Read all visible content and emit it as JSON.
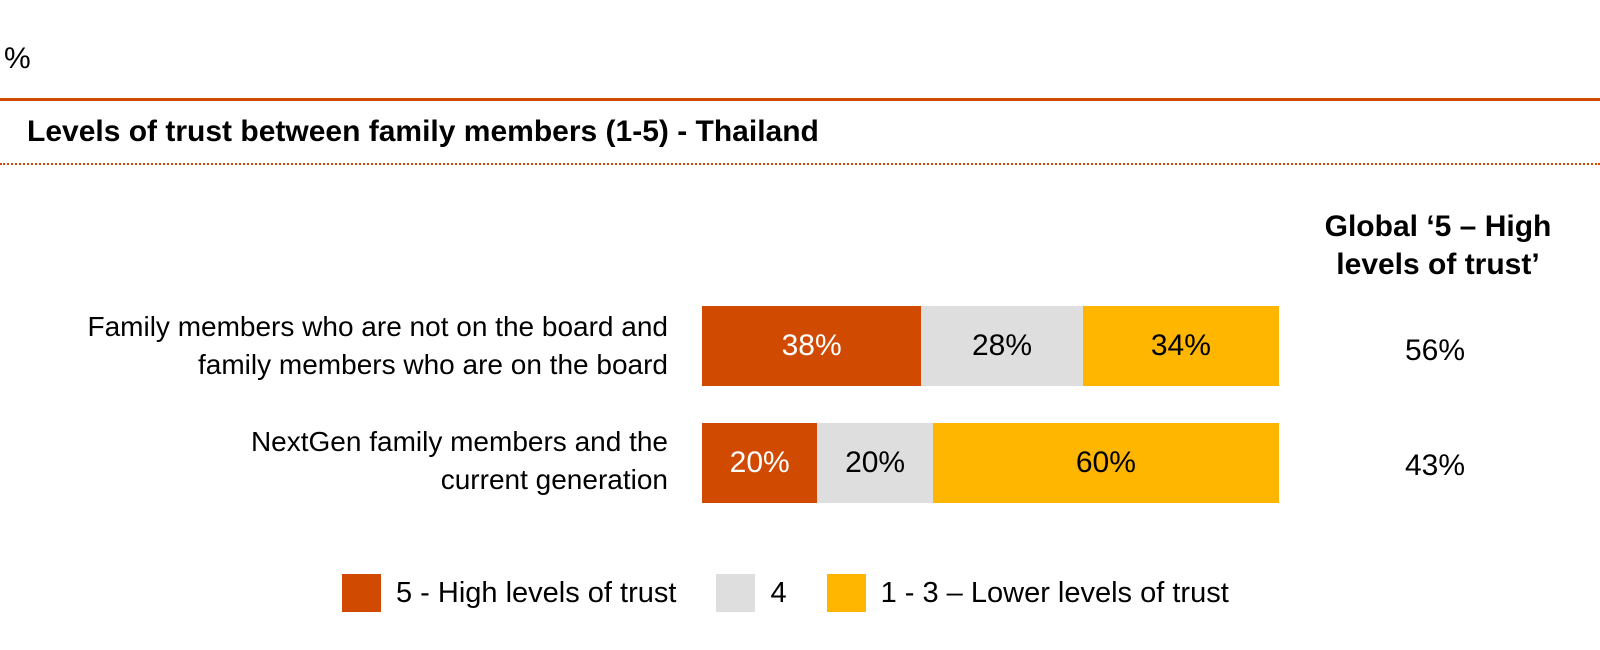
{
  "unit_label": "%",
  "chart_data": {
    "type": "bar",
    "orientation": "horizontal",
    "stacked": true,
    "title": "Levels of trust between family members (1-5) - Thailand",
    "categories": [
      "Family members who are not on the board and family members who are on the board",
      "NextGen family members and the current generation"
    ],
    "category_lines": [
      [
        "Family members who are not on the board and",
        "family members who are on the board"
      ],
      [
        "NextGen family members and the",
        "current generation"
      ]
    ],
    "series": [
      {
        "name": "5 - High levels of trust",
        "values": [
          38,
          20
        ],
        "labels": [
          "38%",
          "20%"
        ],
        "color": "#d04a02",
        "text_color": "#ffffff"
      },
      {
        "name": "4",
        "values": [
          28,
          20
        ],
        "labels": [
          "28%",
          "20%"
        ],
        "color": "#dedede",
        "text_color": "#000000"
      },
      {
        "name": "1 - 3 – Lower levels of trust",
        "values": [
          34,
          60
        ],
        "labels": [
          "34%",
          "60%"
        ],
        "color": "#ffb600",
        "text_color": "#000000"
      }
    ],
    "xlim": [
      0,
      100
    ],
    "grid": false,
    "legend_position": "bottom",
    "global_column": {
      "header_lines": [
        "Global ‘5 – High",
        "levels of trust’"
      ],
      "values": [
        "56%",
        "43%"
      ]
    }
  }
}
